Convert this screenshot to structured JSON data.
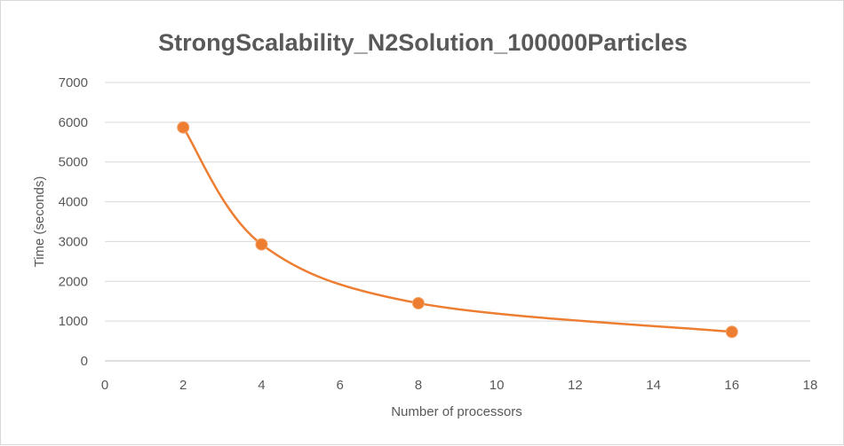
{
  "chart_data": {
    "type": "scatter",
    "title": "StrongScalability_N2Solution_100000Particles",
    "xlabel": "Number of processors",
    "ylabel": "Time (seconds)",
    "xlim": [
      0,
      18
    ],
    "ylim": [
      0,
      7000
    ],
    "x_ticks": [
      0,
      2,
      4,
      6,
      8,
      10,
      12,
      14,
      16,
      18
    ],
    "y_ticks": [
      0,
      1000,
      2000,
      3000,
      4000,
      5000,
      6000,
      7000
    ],
    "grid": "horizontal",
    "legend": "none",
    "smooth_line": true,
    "series": [
      {
        "color": "#ed7d31",
        "x": [
          2,
          4,
          8,
          16
        ],
        "y": [
          5870,
          2930,
          1450,
          730
        ]
      }
    ]
  }
}
